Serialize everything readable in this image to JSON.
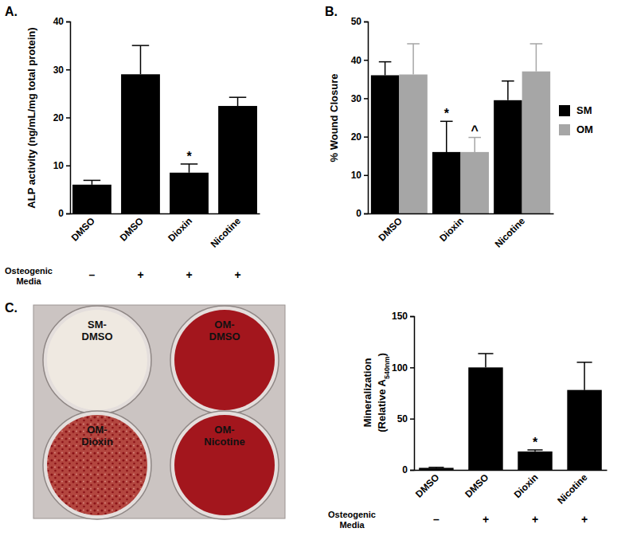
{
  "chart_data": [
    {
      "type": "bar",
      "panel": "A.",
      "ylabel": "ALP activity (ng/mL/mg total protein)",
      "categories": [
        "DMSO",
        "DMSO",
        "Dioxin",
        "Nicotine"
      ],
      "values": [
        6.0,
        29.0,
        8.5,
        22.4
      ],
      "errors": [
        0.9,
        6.0,
        1.8,
        1.8
      ],
      "annotations": [
        null,
        null,
        "*",
        null
      ],
      "color": "#000000",
      "ylim": [
        0,
        40
      ],
      "yticks": [
        0,
        10,
        20,
        30,
        40
      ],
      "media_label": [
        "Osteogenic",
        "Media"
      ],
      "media": [
        "–",
        "+",
        "+",
        "+"
      ]
    },
    {
      "type": "bar",
      "panel": "B.",
      "ylabel": "% Wound Closure",
      "categories": [
        "DMSO",
        "Dioxin",
        "Nicotine"
      ],
      "series": [
        {
          "name": "SM",
          "color": "#000000",
          "values": [
            36.0,
            16.0,
            29.5
          ],
          "errors": [
            3.5,
            8.0,
            5.0
          ],
          "annotations": [
            null,
            "*",
            null
          ]
        },
        {
          "name": "OM",
          "color": "#a6a6a6",
          "values": [
            36.2,
            16.0,
            37.0
          ],
          "errors": [
            8.0,
            3.8,
            7.2
          ],
          "annotations": [
            null,
            "^",
            null
          ]
        }
      ],
      "ylim": [
        0,
        50
      ],
      "yticks": [
        0,
        10,
        20,
        30,
        40,
        50
      ],
      "legend": "right"
    },
    {
      "type": "bar",
      "ylabel": [
        "Mineralization",
        [
          "(Relative A",
          "540nm",
          ")"
        ]
      ],
      "categories": [
        "DMSO",
        "DMSO",
        "Dioxin",
        "Nicotine"
      ],
      "values": [
        2.0,
        100.0,
        18.0,
        78.0
      ],
      "errors": [
        0.5,
        13.5,
        1.5,
        27.0
      ],
      "annotations": [
        null,
        null,
        "*",
        null
      ],
      "color": "#000000",
      "ylim": [
        0,
        150
      ],
      "yticks": [
        0,
        50,
        100,
        150
      ],
      "media_label": [
        "Osteogenic",
        "Media"
      ],
      "media": [
        "–",
        "+",
        "+",
        "+"
      ]
    }
  ],
  "plate": {
    "panel": "C.",
    "wells": [
      [
        "SM-",
        "DMSO"
      ],
      [
        "OM-",
        "DMSO"
      ],
      [
        "OM-",
        "Dioxin"
      ],
      [
        "OM-",
        "Nicotine"
      ]
    ]
  }
}
